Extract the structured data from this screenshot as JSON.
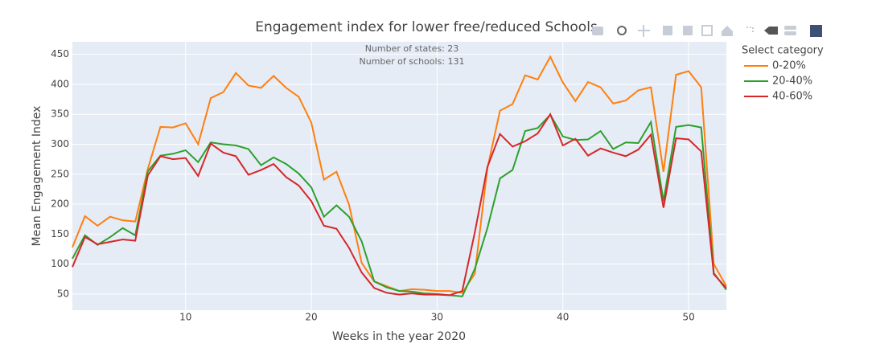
{
  "chart_data": {
    "type": "line",
    "title": "Engagement index for lower free/reduced Schools",
    "x_label": "Weeks in the year 2020",
    "y_label": "Mean Engagement Index",
    "annotations": [
      "Number of states: 23",
      "Number of schools: 131"
    ],
    "legend_title": "Select category",
    "x": [
      1,
      2,
      3,
      4,
      5,
      6,
      7,
      8,
      9,
      10,
      11,
      12,
      13,
      14,
      15,
      16,
      17,
      18,
      19,
      20,
      21,
      22,
      23,
      24,
      25,
      26,
      27,
      28,
      29,
      30,
      31,
      32,
      33,
      34,
      35,
      36,
      37,
      38,
      39,
      40,
      41,
      42,
      43,
      44,
      45,
      46,
      47,
      48,
      49,
      50,
      51,
      52,
      53
    ],
    "xlim": [
      1,
      53
    ],
    "xticks": [
      10,
      20,
      30,
      40,
      50
    ],
    "ylim": [
      23,
      471
    ],
    "yticks": [
      50,
      100,
      150,
      200,
      250,
      300,
      350,
      400,
      450
    ],
    "grid": true,
    "series": [
      {
        "name": "0-20%",
        "color": "#ff7f0e",
        "values": [
          128,
          180,
          164,
          179,
          173,
          171,
          259,
          329,
          328,
          335,
          300,
          377,
          387,
          419,
          398,
          394,
          414,
          394,
          379,
          336,
          241,
          254,
          199,
          102,
          71,
          63,
          55,
          58,
          57,
          55,
          55,
          52,
          84,
          260,
          356,
          367,
          415,
          408,
          446,
          403,
          372,
          404,
          395,
          368,
          373,
          390,
          395,
          254,
          416,
          422,
          395,
          100,
          63
        ]
      },
      {
        "name": "20-40%",
        "color": "#2ca02c",
        "values": [
          109,
          148,
          132,
          145,
          160,
          148,
          255,
          281,
          284,
          290,
          270,
          303,
          300,
          298,
          292,
          265,
          278,
          267,
          251,
          228,
          179,
          198,
          179,
          138,
          71,
          61,
          55,
          54,
          51,
          50,
          48,
          46,
          92,
          160,
          243,
          257,
          322,
          327,
          349,
          313,
          307,
          308,
          322,
          292,
          303,
          302,
          337,
          205,
          329,
          332,
          328,
          85,
          57
        ]
      },
      {
        "name": "40-60%",
        "color": "#d62728",
        "values": [
          95,
          145,
          133,
          137,
          141,
          139,
          248,
          280,
          275,
          277,
          247,
          301,
          286,
          280,
          249,
          257,
          267,
          245,
          231,
          205,
          164,
          159,
          127,
          86,
          60,
          52,
          49,
          51,
          49,
          49,
          48,
          55,
          153,
          262,
          317,
          296,
          305,
          318,
          350,
          298,
          309,
          281,
          293,
          286,
          280,
          291,
          316,
          194,
          310,
          308,
          288,
          83,
          60
        ]
      }
    ]
  }
}
